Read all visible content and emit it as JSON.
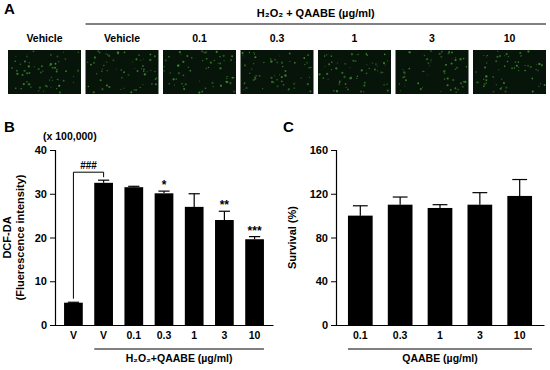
{
  "image_panel": {
    "title": "A",
    "header": "H₂O₂ + QAABE (µg/ml)",
    "columns": [
      "Vehicle",
      "Vehicle",
      "0.1",
      "0.3",
      "1",
      "3",
      "10"
    ]
  },
  "chart_data": [
    {
      "type": "bar",
      "title": "B",
      "annotations": [
        "(x 100,000)"
      ],
      "y_label": [
        "DCF-DA",
        "(Fluerescence intensity)"
      ],
      "x_label": "H₂O₂+QAABE (µg/ml)",
      "categories": [
        "V",
        "V",
        "0.1",
        "0.3",
        "1",
        "3",
        "10"
      ],
      "values": [
        5.1,
        32.5,
        31.5,
        30.1,
        27,
        24,
        19.6
      ],
      "errors": [
        0.1,
        0.6,
        0.2,
        0.5,
        3,
        2,
        0.6
      ],
      "significance": [
        null,
        "###",
        null,
        "*",
        null,
        "**",
        "***"
      ],
      "color": "#000000",
      "ylim": [
        0,
        40
      ],
      "yticks": [
        0,
        10,
        20,
        30,
        40
      ],
      "grid": false
    },
    {
      "type": "bar",
      "title": "C",
      "y_label": [
        "Survival (%)"
      ],
      "x_label": "QAABE (µg/ml)",
      "categories": [
        "0.1",
        "0.3",
        "1",
        "3",
        "10"
      ],
      "values": [
        100,
        110,
        107,
        110,
        118
      ],
      "errors": [
        9,
        7,
        3,
        11,
        15
      ],
      "color": "#000000",
      "ylim": [
        0,
        160
      ],
      "yticks": [
        0,
        40,
        80,
        120,
        160
      ],
      "grid": false
    }
  ]
}
